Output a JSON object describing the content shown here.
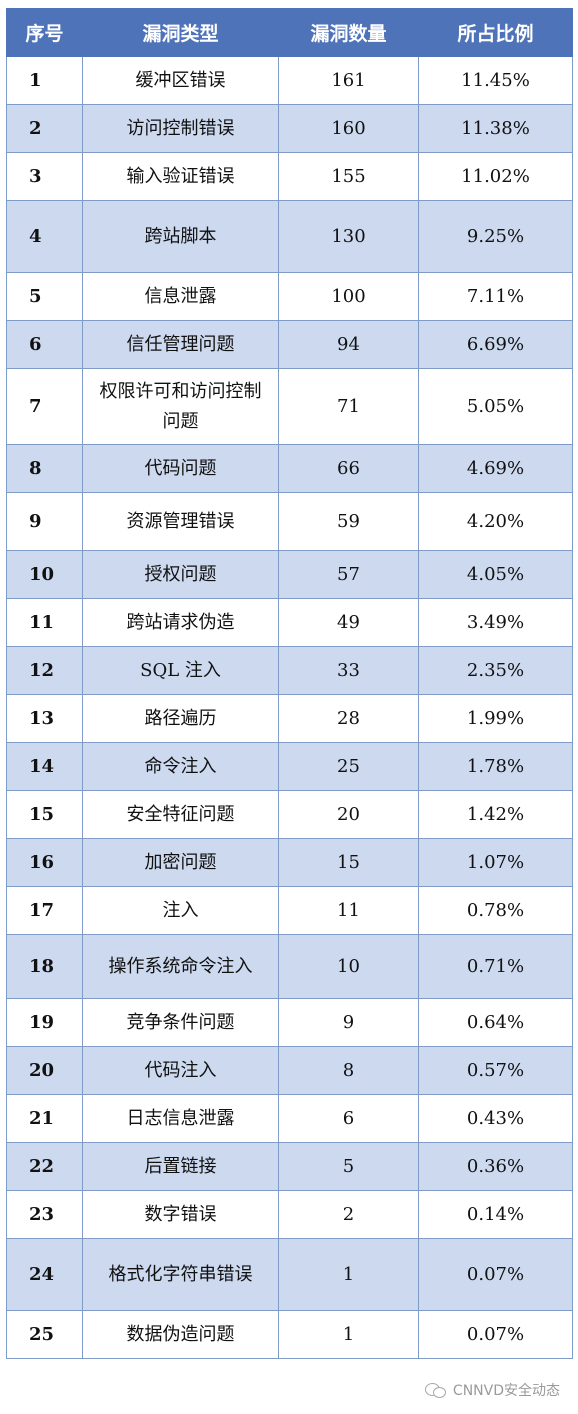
{
  "table": {
    "headers": [
      "序号",
      "漏洞类型",
      "漏洞数量",
      "所占比例"
    ],
    "rows": [
      {
        "no": "1",
        "type": "缓冲区错误",
        "count": "161",
        "pct": "11.45%",
        "h": 48
      },
      {
        "no": "2",
        "type": "访问控制错误",
        "count": "160",
        "pct": "11.38%",
        "h": 48
      },
      {
        "no": "3",
        "type": "输入验证错误",
        "count": "155",
        "pct": "11.02%",
        "h": 48
      },
      {
        "no": "4",
        "type": "跨站脚本",
        "count": "130",
        "pct": "9.25%",
        "h": 72
      },
      {
        "no": "5",
        "type": "信息泄露",
        "count": "100",
        "pct": "7.11%",
        "h": 48
      },
      {
        "no": "6",
        "type": "信任管理问题",
        "count": "94",
        "pct": "6.69%",
        "h": 48
      },
      {
        "no": "7",
        "type": "权限许可和访问控制问题",
        "count": "71",
        "pct": "5.05%",
        "h": 76
      },
      {
        "no": "8",
        "type": "代码问题",
        "count": "66",
        "pct": "4.69%",
        "h": 48
      },
      {
        "no": "9",
        "type": "资源管理错误",
        "count": "59",
        "pct": "4.20%",
        "h": 58
      },
      {
        "no": "10",
        "type": "授权问题",
        "count": "57",
        "pct": "4.05%",
        "h": 48
      },
      {
        "no": "11",
        "type": "跨站请求伪造",
        "count": "49",
        "pct": "3.49%",
        "h": 48
      },
      {
        "no": "12",
        "type": "SQL 注入",
        "count": "33",
        "pct": "2.35%",
        "h": 48
      },
      {
        "no": "13",
        "type": "路径遍历",
        "count": "28",
        "pct": "1.99%",
        "h": 48
      },
      {
        "no": "14",
        "type": "命令注入",
        "count": "25",
        "pct": "1.78%",
        "h": 48
      },
      {
        "no": "15",
        "type": "安全特征问题",
        "count": "20",
        "pct": "1.42%",
        "h": 48
      },
      {
        "no": "16",
        "type": "加密问题",
        "count": "15",
        "pct": "1.07%",
        "h": 48
      },
      {
        "no": "17",
        "type": "注入",
        "count": "11",
        "pct": "0.78%",
        "h": 48
      },
      {
        "no": "18",
        "type": "操作系统命令注入",
        "count": "10",
        "pct": "0.71%",
        "h": 64
      },
      {
        "no": "19",
        "type": "竞争条件问题",
        "count": "9",
        "pct": "0.64%",
        "h": 48
      },
      {
        "no": "20",
        "type": "代码注入",
        "count": "8",
        "pct": "0.57%",
        "h": 48
      },
      {
        "no": "21",
        "type": "日志信息泄露",
        "count": "6",
        "pct": "0.43%",
        "h": 48
      },
      {
        "no": "22",
        "type": "后置链接",
        "count": "5",
        "pct": "0.36%",
        "h": 48
      },
      {
        "no": "23",
        "type": "数字错误",
        "count": "2",
        "pct": "0.14%",
        "h": 48
      },
      {
        "no": "24",
        "type": "格式化字符串错误",
        "count": "1",
        "pct": "0.07%",
        "h": 72
      },
      {
        "no": "25",
        "type": "数据伪造问题",
        "count": "1",
        "pct": "0.07%",
        "h": 48
      }
    ]
  },
  "watermark": {
    "text": "CNNVD安全动态",
    "icon": "wechat-icon"
  }
}
